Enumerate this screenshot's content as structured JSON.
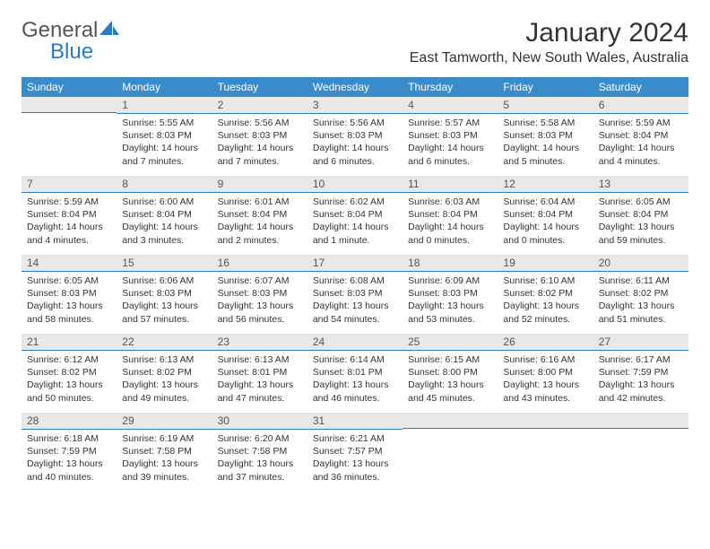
{
  "logo": {
    "text1": "General",
    "text2": "Blue"
  },
  "title": {
    "month": "January 2024",
    "location": "East Tamworth, New South Wales, Australia"
  },
  "colors": {
    "header_bg": "#3a8bc9",
    "header_fg": "#ffffff",
    "daynum_bg": "#e8e8e8",
    "daynum_border": "#2a7bbf",
    "text": "#333333",
    "logo_blue": "#2a7bbf"
  },
  "weekdays": [
    "Sunday",
    "Monday",
    "Tuesday",
    "Wednesday",
    "Thursday",
    "Friday",
    "Saturday"
  ],
  "grid": [
    [
      {
        "num": "",
        "lines": []
      },
      {
        "num": "1",
        "lines": [
          "Sunrise: 5:55 AM",
          "Sunset: 8:03 PM",
          "Daylight: 14 hours and 7 minutes."
        ]
      },
      {
        "num": "2",
        "lines": [
          "Sunrise: 5:56 AM",
          "Sunset: 8:03 PM",
          "Daylight: 14 hours and 7 minutes."
        ]
      },
      {
        "num": "3",
        "lines": [
          "Sunrise: 5:56 AM",
          "Sunset: 8:03 PM",
          "Daylight: 14 hours and 6 minutes."
        ]
      },
      {
        "num": "4",
        "lines": [
          "Sunrise: 5:57 AM",
          "Sunset: 8:03 PM",
          "Daylight: 14 hours and 6 minutes."
        ]
      },
      {
        "num": "5",
        "lines": [
          "Sunrise: 5:58 AM",
          "Sunset: 8:03 PM",
          "Daylight: 14 hours and 5 minutes."
        ]
      },
      {
        "num": "6",
        "lines": [
          "Sunrise: 5:59 AM",
          "Sunset: 8:04 PM",
          "Daylight: 14 hours and 4 minutes."
        ]
      }
    ],
    [
      {
        "num": "7",
        "lines": [
          "Sunrise: 5:59 AM",
          "Sunset: 8:04 PM",
          "Daylight: 14 hours and 4 minutes."
        ]
      },
      {
        "num": "8",
        "lines": [
          "Sunrise: 6:00 AM",
          "Sunset: 8:04 PM",
          "Daylight: 14 hours and 3 minutes."
        ]
      },
      {
        "num": "9",
        "lines": [
          "Sunrise: 6:01 AM",
          "Sunset: 8:04 PM",
          "Daylight: 14 hours and 2 minutes."
        ]
      },
      {
        "num": "10",
        "lines": [
          "Sunrise: 6:02 AM",
          "Sunset: 8:04 PM",
          "Daylight: 14 hours and 1 minute."
        ]
      },
      {
        "num": "11",
        "lines": [
          "Sunrise: 6:03 AM",
          "Sunset: 8:04 PM",
          "Daylight: 14 hours and 0 minutes."
        ]
      },
      {
        "num": "12",
        "lines": [
          "Sunrise: 6:04 AM",
          "Sunset: 8:04 PM",
          "Daylight: 14 hours and 0 minutes."
        ]
      },
      {
        "num": "13",
        "lines": [
          "Sunrise: 6:05 AM",
          "Sunset: 8:04 PM",
          "Daylight: 13 hours and 59 minutes."
        ]
      }
    ],
    [
      {
        "num": "14",
        "lines": [
          "Sunrise: 6:05 AM",
          "Sunset: 8:03 PM",
          "Daylight: 13 hours and 58 minutes."
        ]
      },
      {
        "num": "15",
        "lines": [
          "Sunrise: 6:06 AM",
          "Sunset: 8:03 PM",
          "Daylight: 13 hours and 57 minutes."
        ]
      },
      {
        "num": "16",
        "lines": [
          "Sunrise: 6:07 AM",
          "Sunset: 8:03 PM",
          "Daylight: 13 hours and 56 minutes."
        ]
      },
      {
        "num": "17",
        "lines": [
          "Sunrise: 6:08 AM",
          "Sunset: 8:03 PM",
          "Daylight: 13 hours and 54 minutes."
        ]
      },
      {
        "num": "18",
        "lines": [
          "Sunrise: 6:09 AM",
          "Sunset: 8:03 PM",
          "Daylight: 13 hours and 53 minutes."
        ]
      },
      {
        "num": "19",
        "lines": [
          "Sunrise: 6:10 AM",
          "Sunset: 8:02 PM",
          "Daylight: 13 hours and 52 minutes."
        ]
      },
      {
        "num": "20",
        "lines": [
          "Sunrise: 6:11 AM",
          "Sunset: 8:02 PM",
          "Daylight: 13 hours and 51 minutes."
        ]
      }
    ],
    [
      {
        "num": "21",
        "lines": [
          "Sunrise: 6:12 AM",
          "Sunset: 8:02 PM",
          "Daylight: 13 hours and 50 minutes."
        ]
      },
      {
        "num": "22",
        "lines": [
          "Sunrise: 6:13 AM",
          "Sunset: 8:02 PM",
          "Daylight: 13 hours and 49 minutes."
        ]
      },
      {
        "num": "23",
        "lines": [
          "Sunrise: 6:13 AM",
          "Sunset: 8:01 PM",
          "Daylight: 13 hours and 47 minutes."
        ]
      },
      {
        "num": "24",
        "lines": [
          "Sunrise: 6:14 AM",
          "Sunset: 8:01 PM",
          "Daylight: 13 hours and 46 minutes."
        ]
      },
      {
        "num": "25",
        "lines": [
          "Sunrise: 6:15 AM",
          "Sunset: 8:00 PM",
          "Daylight: 13 hours and 45 minutes."
        ]
      },
      {
        "num": "26",
        "lines": [
          "Sunrise: 6:16 AM",
          "Sunset: 8:00 PM",
          "Daylight: 13 hours and 43 minutes."
        ]
      },
      {
        "num": "27",
        "lines": [
          "Sunrise: 6:17 AM",
          "Sunset: 7:59 PM",
          "Daylight: 13 hours and 42 minutes."
        ]
      }
    ],
    [
      {
        "num": "28",
        "lines": [
          "Sunrise: 6:18 AM",
          "Sunset: 7:59 PM",
          "Daylight: 13 hours and 40 minutes."
        ]
      },
      {
        "num": "29",
        "lines": [
          "Sunrise: 6:19 AM",
          "Sunset: 7:58 PM",
          "Daylight: 13 hours and 39 minutes."
        ]
      },
      {
        "num": "30",
        "lines": [
          "Sunrise: 6:20 AM",
          "Sunset: 7:58 PM",
          "Daylight: 13 hours and 37 minutes."
        ]
      },
      {
        "num": "31",
        "lines": [
          "Sunrise: 6:21 AM",
          "Sunset: 7:57 PM",
          "Daylight: 13 hours and 36 minutes."
        ]
      },
      {
        "num": "",
        "lines": []
      },
      {
        "num": "",
        "lines": []
      },
      {
        "num": "",
        "lines": []
      }
    ]
  ]
}
